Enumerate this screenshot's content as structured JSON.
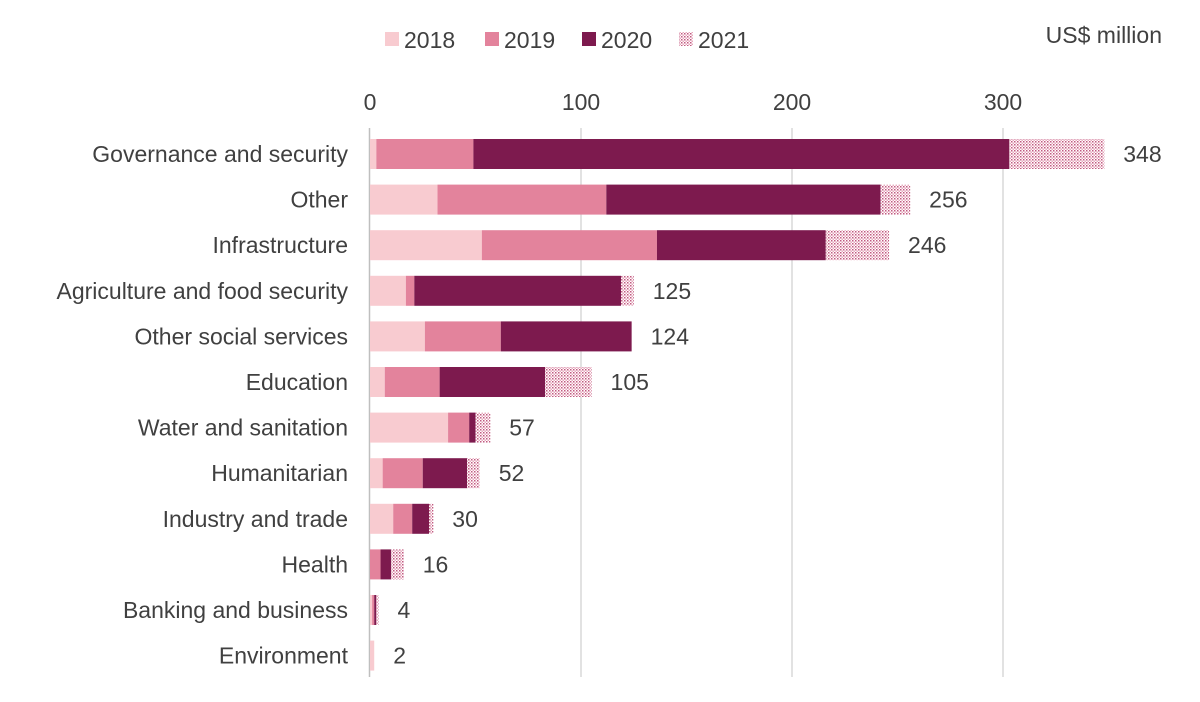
{
  "chart_data": {
    "type": "bar",
    "orientation": "horizontal",
    "stacked": true,
    "unit_label": "US$ million",
    "x_axis_position": "top",
    "xlim": [
      0,
      350
    ],
    "xticks": [
      0,
      100,
      200,
      300
    ],
    "grid": true,
    "legend_position": "top",
    "categories": [
      "Governance and security",
      "Other",
      "Infrastructure",
      "Agriculture and food security",
      "Other social services",
      "Education",
      "Water and sanitation",
      "Humanitarian",
      "Industry and trade",
      "Health",
      "Banking and business",
      "Environment"
    ],
    "series": [
      {
        "name": "2018",
        "color": "#f8cbd0",
        "pattern": "solid",
        "values": [
          3,
          32,
          53,
          17,
          26,
          7,
          37,
          6,
          11,
          0,
          1,
          2
        ]
      },
      {
        "name": "2019",
        "color": "#e3839c",
        "pattern": "solid",
        "values": [
          46,
          80,
          83,
          4,
          36,
          26,
          10,
          19,
          9,
          5,
          1,
          0
        ]
      },
      {
        "name": "2020",
        "color": "#7d1a4e",
        "pattern": "solid",
        "values": [
          254,
          130,
          80,
          98,
          62,
          50,
          3,
          21,
          8,
          5,
          1,
          0
        ]
      },
      {
        "name": "2021",
        "color": "#d3839d",
        "pattern": "dotted",
        "values": [
          45,
          14,
          30,
          6,
          0,
          22,
          7,
          6,
          2,
          6,
          1,
          0
        ]
      }
    ],
    "totals": [
      348,
      256,
      246,
      125,
      124,
      105,
      57,
      52,
      30,
      16,
      4,
      2
    ]
  }
}
